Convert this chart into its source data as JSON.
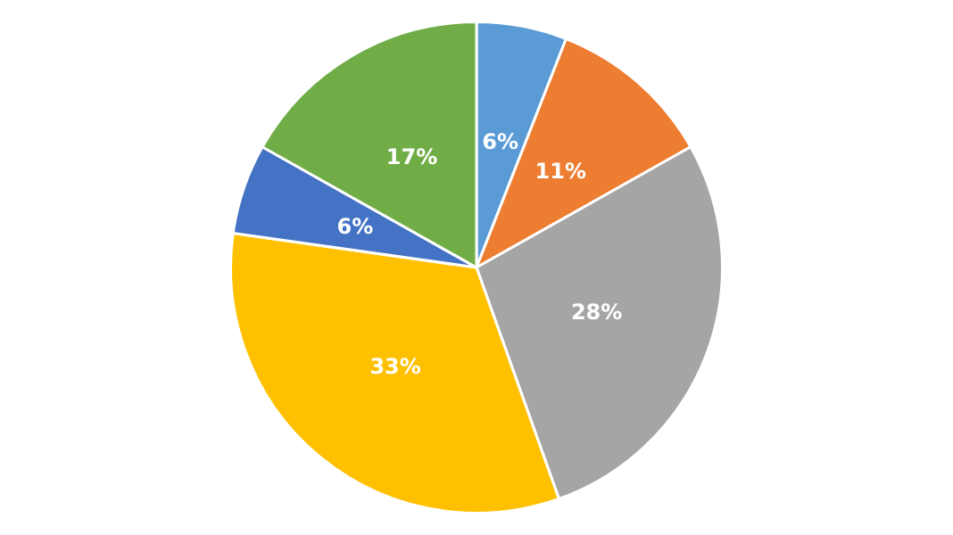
{
  "chart_data": {
    "type": "pie",
    "categories": [
      null,
      null,
      null,
      null,
      null,
      null
    ],
    "values": [
      6,
      11,
      28,
      33,
      6,
      17
    ],
    "value_labels": [
      "6%",
      "11%",
      "28%",
      "33%",
      "6%",
      "17%"
    ],
    "colors": [
      "#5b9bd5",
      "#ed7d31",
      "#a5a5a5",
      "#ffc000",
      "#4472c4",
      "#70ad47"
    ]
  }
}
